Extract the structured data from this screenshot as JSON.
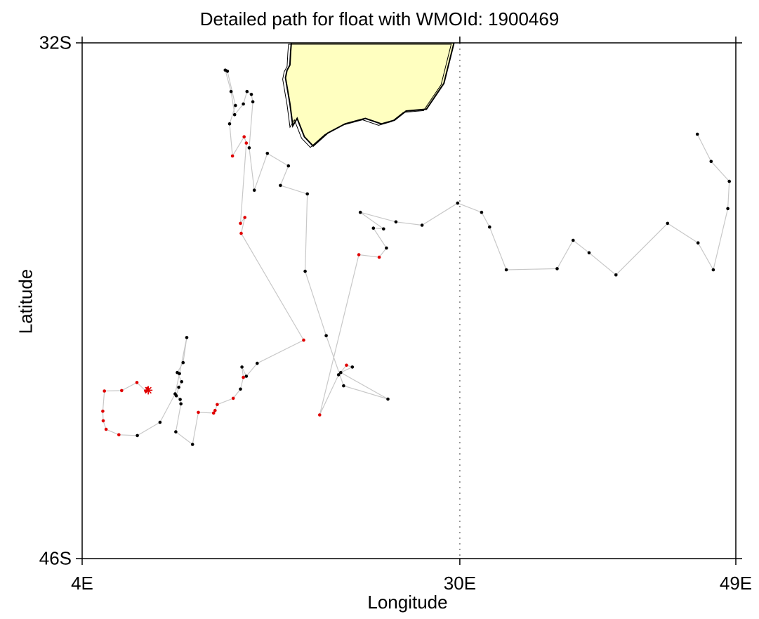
{
  "title": "Detailed path for float with WMOId: 1900469",
  "xlabel": "Longitude",
  "ylabel": "Latitude",
  "x_ticks": [
    {
      "value": 4,
      "label": "4E"
    },
    {
      "value": 30,
      "label": "30E"
    },
    {
      "value": 49,
      "label": "49E"
    }
  ],
  "y_ticks": [
    {
      "value": -32,
      "label": "32S"
    },
    {
      "value": -46,
      "label": "46S"
    }
  ],
  "colors": {
    "land": "#ffffc0",
    "track": "#c8c8c8",
    "point_default": "#000000",
    "point_highlight": "#e00000",
    "meridian_dotted": "#808080"
  },
  "chart_data": {
    "type": "scatter",
    "title": "Detailed path for float with WMOId: 1900469",
    "xlabel": "Longitude",
    "ylabel": "Latitude",
    "xlim": [
      4,
      49
    ],
    "ylim": [
      -46,
      -32
    ],
    "grid": false,
    "reference_meridian": 30,
    "start_marker": {
      "lon": 8.55,
      "lat": -41.43
    },
    "land_outline": [
      [
        18.4,
        -32.0
      ],
      [
        29.6,
        -32.0
      ],
      [
        28.9,
        -33.1
      ],
      [
        27.7,
        -33.8
      ],
      [
        26.3,
        -33.85
      ],
      [
        25.5,
        -34.1
      ],
      [
        24.6,
        -34.2
      ],
      [
        23.5,
        -34.05
      ],
      [
        22.1,
        -34.2
      ],
      [
        20.9,
        -34.45
      ],
      [
        19.9,
        -34.8
      ],
      [
        19.3,
        -34.55
      ],
      [
        18.8,
        -34.05
      ],
      [
        18.5,
        -34.25
      ],
      [
        18.3,
        -33.65
      ],
      [
        18.0,
        -32.95
      ],
      [
        18.1,
        -32.75
      ],
      [
        18.3,
        -32.6
      ],
      [
        18.35,
        -32.25
      ],
      [
        18.4,
        -32.0
      ]
    ],
    "path": [
      {
        "lon": 8.5,
        "lat": -41.38,
        "flag": "red"
      },
      {
        "lon": 8.38,
        "lat": -41.45,
        "flag": "red"
      },
      {
        "lon": 7.77,
        "lat": -41.22,
        "flag": "red"
      },
      {
        "lon": 6.72,
        "lat": -41.44,
        "flag": "red"
      },
      {
        "lon": 5.53,
        "lat": -41.45,
        "flag": "red"
      },
      {
        "lon": 5.42,
        "lat": -42.0,
        "flag": "red"
      },
      {
        "lon": 5.45,
        "lat": -42.26,
        "flag": "red"
      },
      {
        "lon": 5.65,
        "lat": -42.49,
        "flag": "red"
      },
      {
        "lon": 6.53,
        "lat": -42.64,
        "flag": "red"
      },
      {
        "lon": 7.8,
        "lat": -42.66,
        "flag": "black"
      },
      {
        "lon": 9.36,
        "lat": -42.3,
        "flag": "black"
      },
      {
        "lon": 10.4,
        "lat": -41.53,
        "flag": "black"
      },
      {
        "lon": 10.7,
        "lat": -40.98,
        "flag": "black"
      },
      {
        "lon": 11.2,
        "lat": -40.0,
        "flag": "black"
      },
      {
        "lon": 10.95,
        "lat": -40.68,
        "flag": "black"
      },
      {
        "lon": 10.55,
        "lat": -40.95,
        "flag": "black"
      },
      {
        "lon": 10.85,
        "lat": -41.2,
        "flag": "black"
      },
      {
        "lon": 10.65,
        "lat": -41.35,
        "flag": "black"
      },
      {
        "lon": 10.48,
        "lat": -41.58,
        "flag": "black"
      },
      {
        "lon": 10.75,
        "lat": -41.68,
        "flag": "black"
      },
      {
        "lon": 10.8,
        "lat": -41.8,
        "flag": "black"
      },
      {
        "lon": 10.45,
        "lat": -42.56,
        "flag": "black"
      },
      {
        "lon": 11.6,
        "lat": -42.9,
        "flag": "black"
      },
      {
        "lon": 12.0,
        "lat": -42.03,
        "flag": "red"
      },
      {
        "lon": 13.05,
        "lat": -42.05,
        "flag": "red"
      },
      {
        "lon": 13.15,
        "lat": -41.98,
        "flag": "red"
      },
      {
        "lon": 13.3,
        "lat": -41.82,
        "flag": "red"
      },
      {
        "lon": 14.4,
        "lat": -41.65,
        "flag": "red"
      },
      {
        "lon": 14.9,
        "lat": -41.4,
        "flag": "black"
      },
      {
        "lon": 15.1,
        "lat": -41.08,
        "flag": "red"
      },
      {
        "lon": 15.0,
        "lat": -40.8,
        "flag": "black"
      },
      {
        "lon": 15.3,
        "lat": -41.05,
        "flag": "black"
      },
      {
        "lon": 16.05,
        "lat": -40.7,
        "flag": "black"
      },
      {
        "lon": 19.25,
        "lat": -40.07,
        "flag": "red"
      },
      {
        "lon": 14.95,
        "lat": -37.17,
        "flag": "red"
      },
      {
        "lon": 15.2,
        "lat": -36.74,
        "flag": "red"
      },
      {
        "lon": 14.9,
        "lat": -36.9,
        "flag": "red"
      },
      {
        "lon": 15.3,
        "lat": -34.72,
        "flag": "red"
      },
      {
        "lon": 15.15,
        "lat": -34.55,
        "flag": "red"
      },
      {
        "lon": 14.35,
        "lat": -35.07,
        "flag": "red"
      },
      {
        "lon": 14.15,
        "lat": -34.2,
        "flag": "black"
      },
      {
        "lon": 14.55,
        "lat": -33.7,
        "flag": "black"
      },
      {
        "lon": 14.0,
        "lat": -32.77,
        "flag": "black"
      },
      {
        "lon": 13.85,
        "lat": -32.74,
        "flag": "black"
      },
      {
        "lon": 14.25,
        "lat": -33.32,
        "flag": "black"
      },
      {
        "lon": 14.5,
        "lat": -33.95,
        "flag": "black"
      },
      {
        "lon": 15.1,
        "lat": -33.66,
        "flag": "black"
      },
      {
        "lon": 15.35,
        "lat": -33.32,
        "flag": "black"
      },
      {
        "lon": 15.65,
        "lat": -33.4,
        "flag": "black"
      },
      {
        "lon": 15.75,
        "lat": -33.6,
        "flag": "black"
      },
      {
        "lon": 15.5,
        "lat": -34.85,
        "flag": "black"
      },
      {
        "lon": 15.85,
        "lat": -36.0,
        "flag": "black"
      },
      {
        "lon": 16.75,
        "lat": -35.0,
        "flag": "black"
      },
      {
        "lon": 18.2,
        "lat": -35.34,
        "flag": "black"
      },
      {
        "lon": 17.65,
        "lat": -35.87,
        "flag": "black"
      },
      {
        "lon": 19.5,
        "lat": -36.1,
        "flag": "black"
      },
      {
        "lon": 19.35,
        "lat": -38.2,
        "flag": "black"
      },
      {
        "lon": 20.8,
        "lat": -39.95,
        "flag": "black"
      },
      {
        "lon": 22.0,
        "lat": -41.31,
        "flag": "black"
      },
      {
        "lon": 25.05,
        "lat": -41.67,
        "flag": "black"
      },
      {
        "lon": 21.8,
        "lat": -40.95,
        "flag": "black"
      },
      {
        "lon": 22.6,
        "lat": -40.8,
        "flag": "black"
      },
      {
        "lon": 22.2,
        "lat": -40.75,
        "flag": "red"
      },
      {
        "lon": 21.65,
        "lat": -41.01,
        "flag": "black"
      },
      {
        "lon": 20.35,
        "lat": -42.1,
        "flag": "red"
      },
      {
        "lon": 23.05,
        "lat": -37.75,
        "flag": "red"
      },
      {
        "lon": 24.45,
        "lat": -37.82,
        "flag": "red"
      },
      {
        "lon": 24.95,
        "lat": -37.57,
        "flag": "black"
      },
      {
        "lon": 24.05,
        "lat": -37.03,
        "flag": "black"
      },
      {
        "lon": 24.75,
        "lat": -37.05,
        "flag": "black"
      },
      {
        "lon": 23.15,
        "lat": -36.6,
        "flag": "black"
      },
      {
        "lon": 25.6,
        "lat": -36.86,
        "flag": "black"
      },
      {
        "lon": 27.4,
        "lat": -36.95,
        "flag": "black"
      },
      {
        "lon": 29.85,
        "lat": -36.35,
        "flag": "black"
      },
      {
        "lon": 31.5,
        "lat": -36.6,
        "flag": "black"
      },
      {
        "lon": 32.05,
        "lat": -37.0,
        "flag": "black"
      },
      {
        "lon": 33.2,
        "lat": -38.16,
        "flag": "black"
      },
      {
        "lon": 36.7,
        "lat": -38.13,
        "flag": "black"
      },
      {
        "lon": 37.8,
        "lat": -37.36,
        "flag": "black"
      },
      {
        "lon": 38.9,
        "lat": -37.7,
        "flag": "black"
      },
      {
        "lon": 40.75,
        "lat": -38.3,
        "flag": "black"
      },
      {
        "lon": 44.3,
        "lat": -36.9,
        "flag": "black"
      },
      {
        "lon": 46.4,
        "lat": -37.43,
        "flag": "black"
      },
      {
        "lon": 47.45,
        "lat": -38.16,
        "flag": "black"
      },
      {
        "lon": 48.45,
        "lat": -36.5,
        "flag": "black"
      },
      {
        "lon": 48.55,
        "lat": -35.76,
        "flag": "black"
      },
      {
        "lon": 47.3,
        "lat": -35.22,
        "flag": "black"
      },
      {
        "lon": 46.35,
        "lat": -34.48,
        "flag": "black"
      }
    ]
  }
}
